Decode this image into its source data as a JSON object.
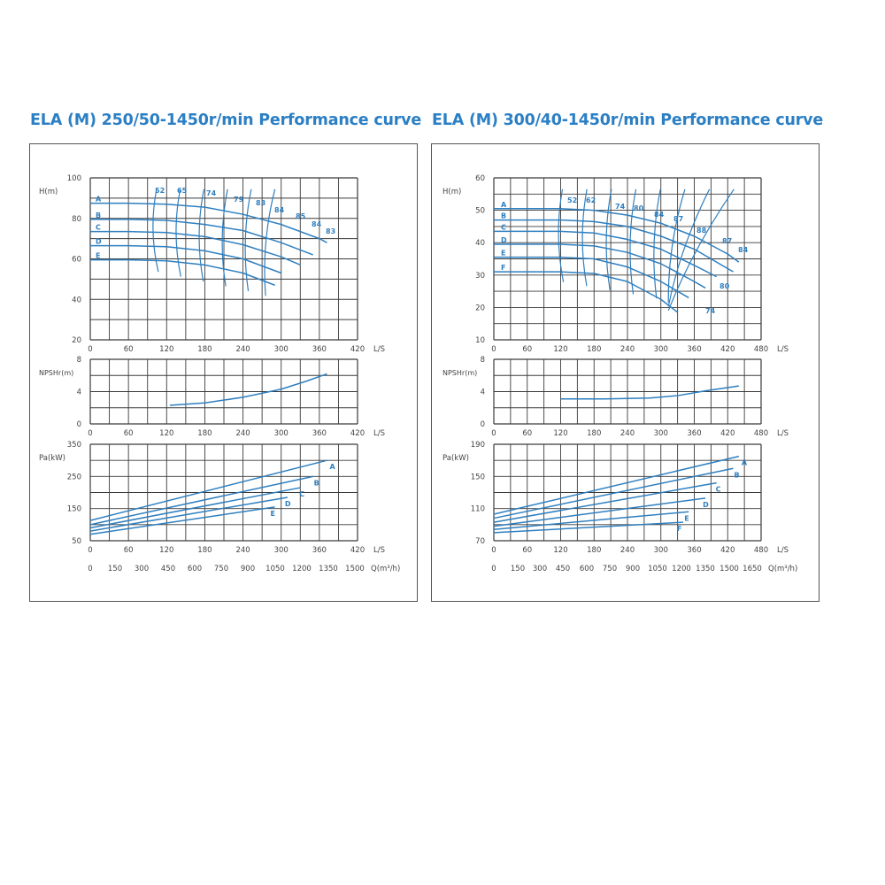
{
  "colors": {
    "curve": "#2f7fbf",
    "grid": "#3a3a3a",
    "title": "#2b7fc4",
    "text": "#444444"
  },
  "chart_data": [
    {
      "type": "line",
      "title": "ELA (M) 250/50-1450r/min Performance curve",
      "units": {
        "flow": "L/S",
        "flow_alt": "Q(m³/h)"
      },
      "head": {
        "ylabel": "H(m)",
        "xlim": [
          0,
          420
        ],
        "ylim": [
          20,
          100
        ],
        "x_ticks": [
          0,
          60,
          120,
          180,
          240,
          300,
          360,
          420
        ],
        "y_ticks": [
          20,
          40,
          60,
          80,
          100
        ],
        "series": [
          {
            "name": "A",
            "x": [
              0,
              60,
              120,
              180,
              240,
              300,
              360,
              372
            ],
            "y": [
              87.5,
              87.5,
              87,
              85.5,
              82,
              77,
              70,
              68
            ]
          },
          {
            "name": "B",
            "x": [
              0,
              60,
              120,
              180,
              240,
              300,
              350
            ],
            "y": [
              79.5,
              79.5,
              79,
              77,
              74,
              68,
              62
            ]
          },
          {
            "name": "C",
            "x": [
              0,
              60,
              120,
              180,
              240,
              300,
              330
            ],
            "y": [
              73.5,
              73.5,
              73,
              71,
              67,
              61,
              57
            ]
          },
          {
            "name": "D",
            "x": [
              0,
              60,
              120,
              180,
              240,
              300
            ],
            "y": [
              66.5,
              66.5,
              66,
              64,
              60,
              53
            ]
          },
          {
            "name": "E",
            "x": [
              0,
              60,
              120,
              180,
              240,
              290
            ],
            "y": [
              59.5,
              59.5,
              59,
              57,
              53,
              47
            ]
          }
        ],
        "efficiency_labels": [
          "52",
          "65",
          "74",
          "79",
          "83",
          "84",
          "85",
          "84",
          "83"
        ]
      },
      "npsh": {
        "ylabel": "NPSHr(m)",
        "xlim": [
          0,
          420
        ],
        "ylim": [
          0,
          8
        ],
        "x_ticks": [
          0,
          60,
          120,
          180,
          240,
          300,
          360,
          420
        ],
        "y_ticks": [
          0,
          4,
          8
        ],
        "series": [
          {
            "x": [
              125,
              180,
              240,
              300,
              340,
              372
            ],
            "y": [
              2.3,
              2.6,
              3.3,
              4.3,
              5.3,
              6.2
            ]
          }
        ]
      },
      "power": {
        "ylabel": "Pa(kW)",
        "xlim": [
          0,
          420
        ],
        "ylim": [
          50,
          350
        ],
        "x_ticks": [
          0,
          60,
          120,
          180,
          240,
          300,
          360,
          420
        ],
        "y_ticks": [
          50,
          150,
          250,
          350
        ],
        "q_ticks": [
          "0",
          "150",
          "300",
          "450",
          "600",
          "750",
          "900",
          "1050",
          "1200",
          "1350",
          "1500"
        ],
        "series": [
          {
            "name": "A",
            "x": [
              0,
              372
            ],
            "y": [
              113,
              300
            ]
          },
          {
            "name": "B",
            "x": [
              0,
              350
            ],
            "y": [
              100,
              250
            ]
          },
          {
            "name": "C",
            "x": [
              0,
              330
            ],
            "y": [
              90,
              215
            ]
          },
          {
            "name": "D",
            "x": [
              0,
              310
            ],
            "y": [
              80,
              185
            ]
          },
          {
            "name": "E",
            "x": [
              0,
              290
            ],
            "y": [
              70,
              155
            ]
          }
        ]
      }
    },
    {
      "type": "line",
      "title": "ELA (M) 300/40-1450r/min Performance curve",
      "units": {
        "flow": "L/S",
        "flow_alt": "Q(m³/h)"
      },
      "head": {
        "ylabel": "H(m)",
        "xlim": [
          0,
          480
        ],
        "ylim": [
          10,
          60
        ],
        "x_ticks": [
          0,
          60,
          120,
          180,
          240,
          300,
          360,
          420,
          480
        ],
        "y_ticks": [
          10,
          20,
          30,
          40,
          50,
          60
        ],
        "series": [
          {
            "name": "A",
            "x": [
              0,
              60,
              120,
              180,
              240,
              300,
              360,
              420,
              440
            ],
            "y": [
              50.5,
              50.5,
              50.5,
              50,
              48.5,
              46,
              42,
              36.5,
              34
            ]
          },
          {
            "name": "B",
            "x": [
              0,
              60,
              120,
              180,
              240,
              300,
              360,
              420,
              430
            ],
            "y": [
              47,
              47,
              47,
              46.5,
              45,
              42,
              38,
              32,
              31
            ]
          },
          {
            "name": "C",
            "x": [
              0,
              60,
              120,
              180,
              240,
              300,
              360,
              400
            ],
            "y": [
              43.5,
              43.5,
              43.5,
              43,
              41,
              38,
              33,
              29.5
            ]
          },
          {
            "name": "D",
            "x": [
              0,
              60,
              120,
              180,
              240,
              300,
              360,
              380
            ],
            "y": [
              39.5,
              39.5,
              39.5,
              39,
              37,
              33.5,
              28,
              26
            ]
          },
          {
            "name": "E",
            "x": [
              0,
              60,
              120,
              180,
              240,
              300,
              350
            ],
            "y": [
              35.5,
              35.5,
              35.5,
              35,
              32.5,
              28,
              23
            ]
          },
          {
            "name": "F",
            "x": [
              0,
              60,
              120,
              180,
              240,
              300,
              330
            ],
            "y": [
              31,
              31,
              31,
              30.5,
              28,
              22.5,
              18.5
            ]
          }
        ],
        "efficiency_labels": [
          "52",
          "62",
          "74",
          "80",
          "84",
          "87",
          "88",
          "87",
          "84",
          "80",
          "74"
        ]
      },
      "npsh": {
        "ylabel": "NPSHr(m)",
        "xlim": [
          0,
          480
        ],
        "ylim": [
          0,
          8
        ],
        "x_ticks": [
          0,
          60,
          120,
          180,
          240,
          300,
          360,
          420,
          480
        ],
        "y_ticks": [
          0,
          4,
          8
        ],
        "series": [
          {
            "x": [
              120,
              200,
              280,
              330,
              380,
              440
            ],
            "y": [
              3.1,
              3.1,
              3.2,
              3.5,
              4.1,
              4.7
            ]
          }
        ]
      },
      "power": {
        "ylabel": "Pa(kW)",
        "xlim": [
          0,
          480
        ],
        "ylim": [
          70,
          190
        ],
        "x_ticks": [
          0,
          60,
          120,
          180,
          240,
          300,
          360,
          420,
          480
        ],
        "y_ticks": [
          70,
          110,
          150,
          190
        ],
        "q_ticks": [
          "0",
          "150",
          "300",
          "450",
          "600",
          "750",
          "900",
          "1050",
          "1200",
          "1350",
          "1500",
          "1650"
        ],
        "series": [
          {
            "name": "A",
            "x": [
              0,
              440
            ],
            "y": [
              103,
              175
            ]
          },
          {
            "name": "B",
            "x": [
              0,
              430
            ],
            "y": [
              98,
              160
            ]
          },
          {
            "name": "C",
            "x": [
              0,
              400
            ],
            "y": [
              93,
              142
            ]
          },
          {
            "name": "D",
            "x": [
              0,
              380
            ],
            "y": [
              88,
              123
            ]
          },
          {
            "name": "E",
            "x": [
              0,
              350
            ],
            "y": [
              84,
              106
            ]
          },
          {
            "name": "F",
            "x": [
              0,
              340
            ],
            "y": [
              80,
              93
            ]
          }
        ]
      }
    }
  ]
}
